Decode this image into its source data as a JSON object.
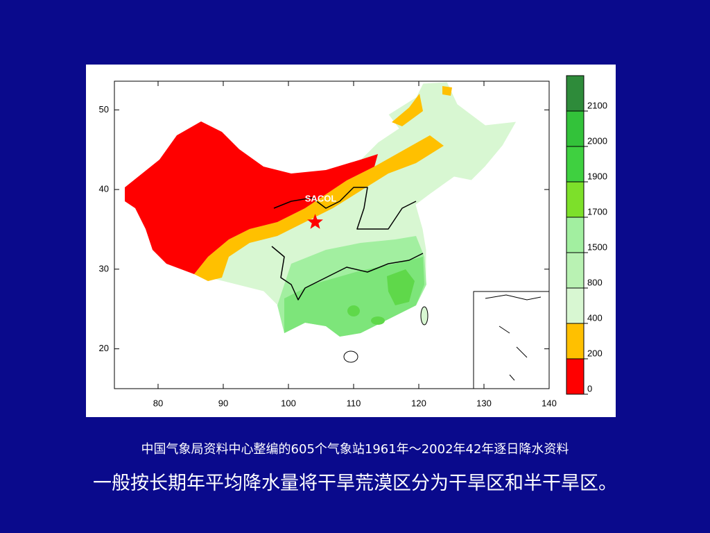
{
  "map": {
    "type": "map",
    "xticks": [
      80,
      90,
      100,
      110,
      120,
      130,
      140
    ],
    "yticks": [
      20,
      30,
      40,
      50
    ],
    "xlim": [
      73.3,
      140
    ],
    "ylim": [
      15,
      53.6
    ],
    "station": {
      "label": "SACOL",
      "lon": 104.1,
      "lat": 35.9,
      "color": "#ff0000"
    },
    "legend": [
      {
        "value": 2100,
        "color": "#2e8b3a"
      },
      {
        "value": 2000,
        "color": "#33c23a"
      },
      {
        "value": 1900,
        "color": "#3fd040"
      },
      {
        "value": 1700,
        "color": "#7de02a"
      },
      {
        "value": 1500,
        "color": "#a2efa0"
      },
      {
        "value": 800,
        "color": "#b9f2b3"
      },
      {
        "value": 400,
        "color": "#d8f7d2"
      },
      {
        "value": 200,
        "color": "#ffc000"
      },
      {
        "value": 0,
        "color": "#ff0000"
      }
    ]
  },
  "caption": {
    "source": "中国气象局资料中心整编的605个气象站1961年～2002年42年逐日降水资料",
    "note": "一般按长期年平均降水量将干旱荒漠区分为干旱区和半干旱区。"
  }
}
